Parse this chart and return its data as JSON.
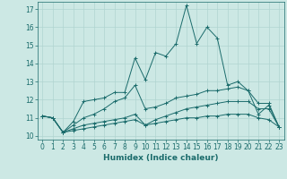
{
  "title": "",
  "xlabel": "Humidex (Indice chaleur)",
  "ylabel": "",
  "xlim": [
    -0.5,
    23.5
  ],
  "ylim": [
    9.8,
    17.4
  ],
  "yticks": [
    10,
    11,
    12,
    13,
    14,
    15,
    16,
    17
  ],
  "xticks": [
    0,
    1,
    2,
    3,
    4,
    5,
    6,
    7,
    8,
    9,
    10,
    11,
    12,
    13,
    14,
    15,
    16,
    17,
    18,
    19,
    20,
    21,
    22,
    23
  ],
  "bg_color": "#cce8e4",
  "grid_color": "#b0d4d0",
  "line_color": "#1a6b6b",
  "lines": [
    {
      "x": [
        0,
        1,
        2,
        3,
        4,
        5,
        6,
        7,
        8,
        9,
        10,
        11,
        12,
        13,
        14,
        15,
        16,
        17,
        18,
        19,
        20,
        21,
        22,
        23
      ],
      "y": [
        11.1,
        11.0,
        10.2,
        10.8,
        11.9,
        12.0,
        12.1,
        12.4,
        12.4,
        14.3,
        13.1,
        14.6,
        14.4,
        15.1,
        17.2,
        15.1,
        16.0,
        15.4,
        12.8,
        13.0,
        12.5,
        11.2,
        11.7,
        10.5
      ]
    },
    {
      "x": [
        0,
        1,
        2,
        3,
        4,
        5,
        6,
        7,
        8,
        9,
        10,
        11,
        12,
        13,
        14,
        15,
        16,
        17,
        18,
        19,
        20,
        21,
        22,
        23
      ],
      "y": [
        11.1,
        11.0,
        10.2,
        10.6,
        11.0,
        11.2,
        11.5,
        11.9,
        12.1,
        12.8,
        11.5,
        11.6,
        11.8,
        12.1,
        12.2,
        12.3,
        12.5,
        12.5,
        12.6,
        12.7,
        12.5,
        11.8,
        11.8,
        10.5
      ]
    },
    {
      "x": [
        0,
        1,
        2,
        3,
        4,
        5,
        6,
        7,
        8,
        9,
        10,
        11,
        12,
        13,
        14,
        15,
        16,
        17,
        18,
        19,
        20,
        21,
        22,
        23
      ],
      "y": [
        11.1,
        11.0,
        10.2,
        10.4,
        10.6,
        10.7,
        10.8,
        10.9,
        11.0,
        11.2,
        10.6,
        10.9,
        11.1,
        11.3,
        11.5,
        11.6,
        11.7,
        11.8,
        11.9,
        11.9,
        11.9,
        11.5,
        11.5,
        10.5
      ]
    },
    {
      "x": [
        0,
        1,
        2,
        3,
        4,
        5,
        6,
        7,
        8,
        9,
        10,
        11,
        12,
        13,
        14,
        15,
        16,
        17,
        18,
        19,
        20,
        21,
        22,
        23
      ],
      "y": [
        11.1,
        11.0,
        10.2,
        10.3,
        10.4,
        10.5,
        10.6,
        10.7,
        10.8,
        10.9,
        10.6,
        10.7,
        10.8,
        10.9,
        11.0,
        11.0,
        11.1,
        11.1,
        11.2,
        11.2,
        11.2,
        11.0,
        10.9,
        10.5
      ]
    }
  ]
}
